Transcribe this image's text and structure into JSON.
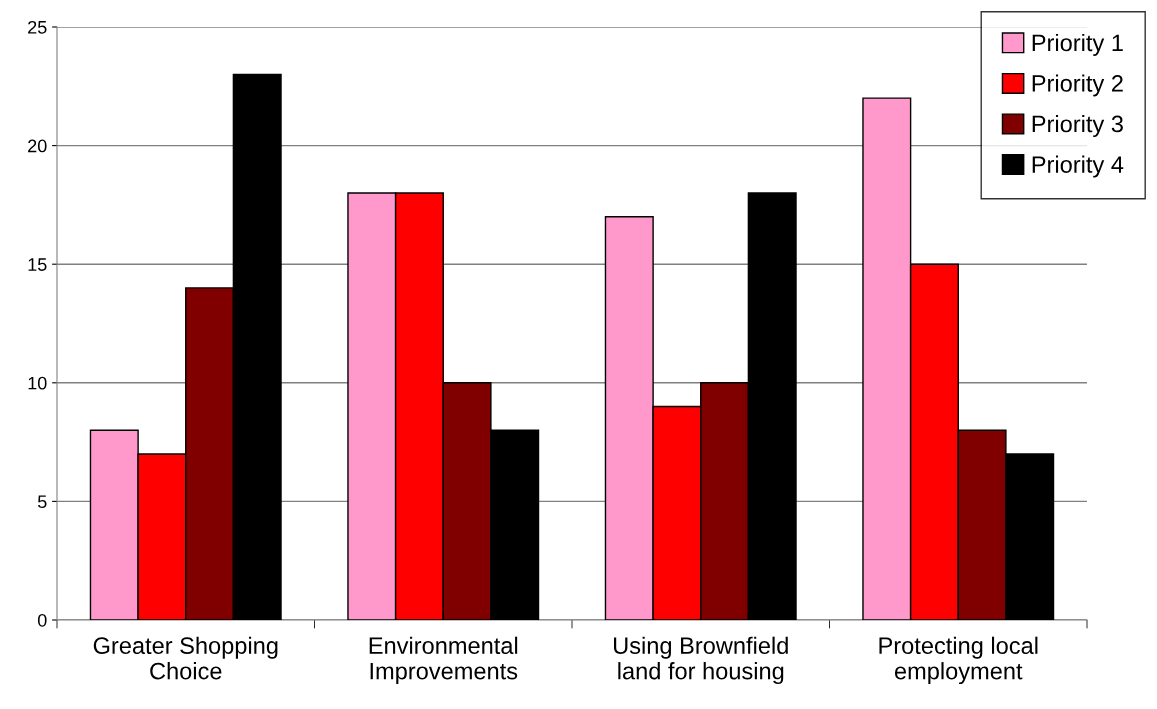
{
  "chart_data": {
    "type": "bar",
    "categories": [
      "Greater Shopping\nChoice",
      "Environmental\nImprovements",
      "Using Brownfield\nland for housing",
      "Protecting local\nemployment"
    ],
    "series": [
      {
        "name": "Priority 1",
        "color": "#ff99cc",
        "values": [
          8,
          18,
          17,
          22
        ]
      },
      {
        "name": "Priority 2",
        "color": "#ff0000",
        "values": [
          7,
          18,
          9,
          15
        ]
      },
      {
        "name": "Priority 3",
        "color": "#800000",
        "values": [
          14,
          10,
          10,
          8
        ]
      },
      {
        "name": "Priority 4",
        "color": "#000000",
        "values": [
          23,
          8,
          18,
          7
        ]
      }
    ],
    "ylim": [
      0,
      25
    ],
    "yticks": [
      0,
      5,
      10,
      15,
      20,
      25
    ],
    "grid": "y",
    "legend": "top right"
  }
}
